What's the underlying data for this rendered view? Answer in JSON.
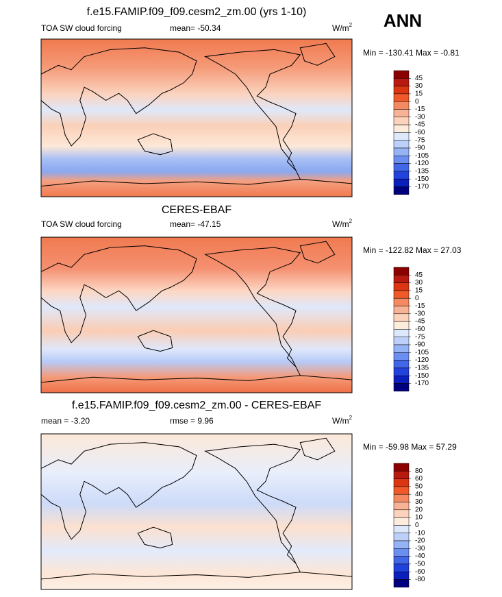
{
  "season": "ANN",
  "panels": [
    {
      "title": "f.e15.FAMIP.f09_f09.cesm2_zm.00 (yrs 1-10)",
      "left_label": "TOA SW cloud forcing",
      "stat": "mean= -50.34",
      "units": "W/m",
      "units_exp": "2",
      "range": "Min = -130.41 Max =  -0.81",
      "colorbar": [
        45,
        30,
        15,
        0,
        -15,
        -30,
        -45,
        -60,
        -75,
        -90,
        -105,
        -120,
        -135,
        -150,
        -170
      ]
    },
    {
      "title": "CERES-EBAF",
      "left_label": "TOA SW cloud forcing",
      "stat": "mean= -47.15",
      "units": "W/m",
      "units_exp": "2",
      "range": "Min = -122.82 Max = 27.03",
      "colorbar": [
        45,
        30,
        15,
        0,
        -15,
        -30,
        -45,
        -60,
        -75,
        -90,
        -105,
        -120,
        -135,
        -150,
        -170
      ]
    },
    {
      "title": "f.e15.FAMIP.f09_f09.cesm2_zm.00 - CERES-EBAF",
      "left_label": "mean =  -3.20",
      "stat": "rmse =   9.96",
      "units": "W/m",
      "units_exp": "2",
      "range": "Min = -59.98 Max =  57.29",
      "colorbar": [
        80,
        60,
        50,
        40,
        30,
        20,
        10,
        0,
        -10,
        -20,
        -30,
        -40,
        -50,
        -60,
        -80
      ]
    }
  ]
}
